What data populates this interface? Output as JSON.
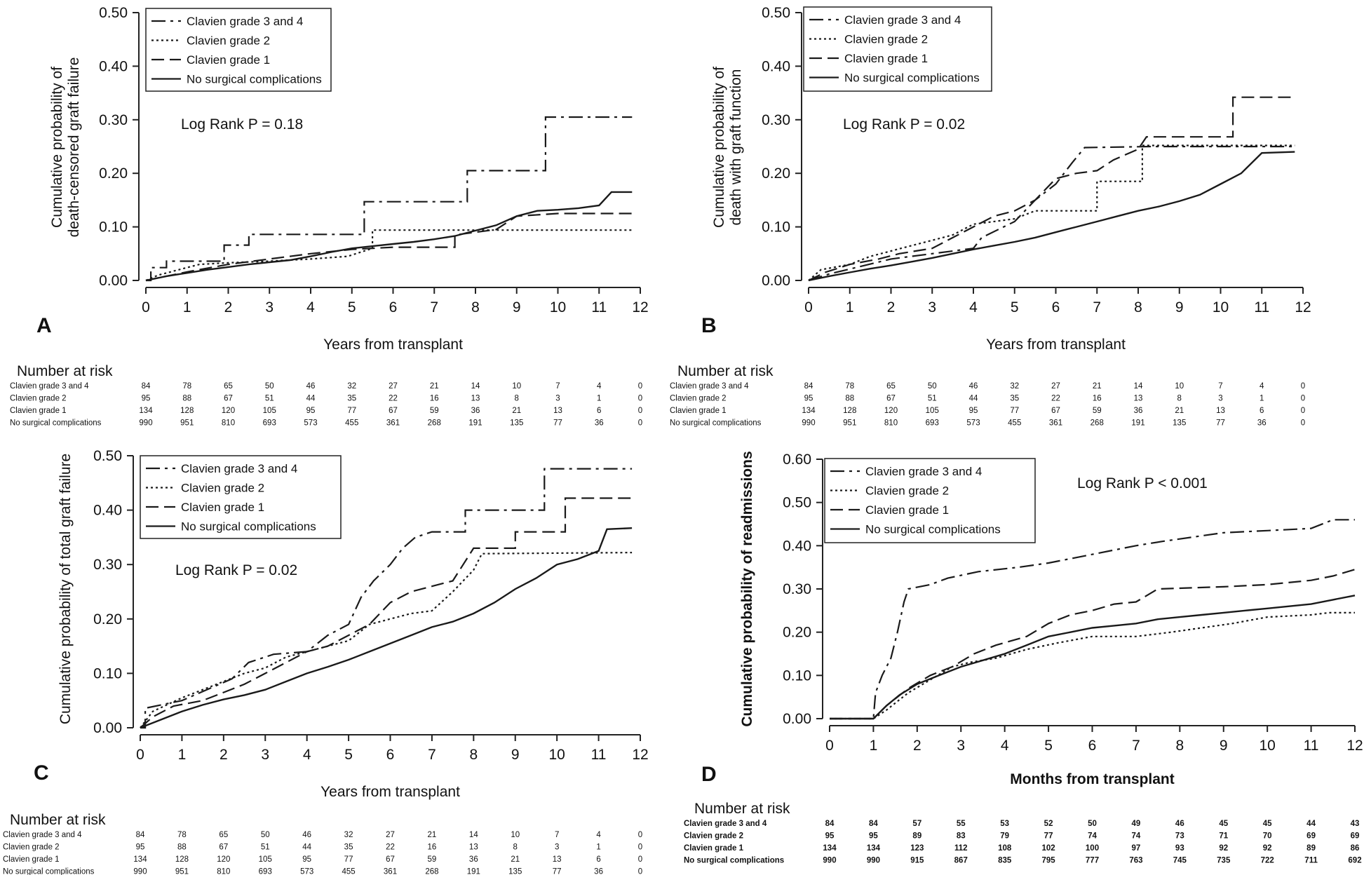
{
  "figure": {
    "risk_title": "Number at risk",
    "risk_rows": [
      "Clavien grade 3 and 4",
      "Clavien grade 2",
      "Clavien grade 1",
      "No surgical complications"
    ],
    "risk_values_years": [
      [
        84,
        78,
        65,
        50,
        46,
        32,
        27,
        21,
        14,
        10,
        7,
        4,
        0
      ],
      [
        95,
        88,
        67,
        51,
        44,
        35,
        22,
        16,
        13,
        8,
        3,
        1,
        0
      ],
      [
        134,
        128,
        120,
        105,
        95,
        77,
        67,
        59,
        36,
        21,
        13,
        6,
        0
      ],
      [
        990,
        951,
        810,
        693,
        573,
        455,
        361,
        268,
        191,
        135,
        77,
        36,
        0
      ]
    ],
    "risk_values_months": [
      [
        84,
        84,
        57,
        55,
        53,
        52,
        50,
        49,
        46,
        45,
        45,
        44,
        43
      ],
      [
        95,
        95,
        89,
        83,
        79,
        77,
        74,
        74,
        73,
        71,
        70,
        69,
        69
      ],
      [
        134,
        134,
        123,
        112,
        108,
        102,
        100,
        97,
        93,
        92,
        92,
        89,
        86
      ],
      [
        990,
        990,
        915,
        867,
        835,
        795,
        777,
        763,
        745,
        735,
        722,
        711,
        692
      ]
    ]
  },
  "chart_data": [
    {
      "type": "line",
      "panel": "A",
      "title": "",
      "ylabel": "Cumulative probability of\ndeath-censored graft failure",
      "xlabel": "Years from transplant",
      "xlim": [
        0,
        12
      ],
      "ylim": [
        0,
        0.5
      ],
      "x_ticks": [
        "0",
        "1",
        "2",
        "3",
        "4",
        "5",
        "6",
        "7",
        "8",
        "9",
        "10",
        "11",
        "12"
      ],
      "y_ticks": [
        "0.00",
        "0.10",
        "0.20",
        "0.30",
        "0.40",
        "0.50"
      ],
      "annotation": "Log Rank P = 0.18",
      "legend": [
        "Clavien grade 3 and 4",
        "Clavien grade 2",
        "Clavien grade 1",
        "No surgical complications"
      ],
      "series": [
        {
          "name": "Clavien grade 3 and 4",
          "style": "dashdot",
          "x": [
            0,
            0.12,
            0.12,
            0.5,
            0.5,
            1.9,
            1.9,
            2.5,
            2.5,
            3.2,
            3.2,
            5.3,
            5.3,
            7.8,
            7.8,
            9.7,
            9.7,
            11.8
          ],
          "y": [
            0,
            0,
            0.024,
            0.024,
            0.036,
            0.036,
            0.066,
            0.066,
            0.086,
            0.086,
            0.086,
            0.086,
            0.147,
            0.147,
            0.205,
            0.205,
            0.305,
            0.305
          ]
        },
        {
          "name": "Clavien grade 2",
          "style": "dotted",
          "x": [
            0,
            0.3,
            0.8,
            1.3,
            2.0,
            3.0,
            4.0,
            4.9,
            5.5,
            5.5,
            8.0,
            9.0,
            11.8
          ],
          "y": [
            0,
            0.01,
            0.02,
            0.03,
            0.033,
            0.036,
            0.04,
            0.045,
            0.06,
            0.094,
            0.094,
            0.094,
            0.094
          ]
        },
        {
          "name": "Clavien grade 1",
          "style": "dashed",
          "x": [
            0,
            0.5,
            1.0,
            2.0,
            3.0,
            4.0,
            5.0,
            6.0,
            7.5,
            7.5,
            8.5,
            9.0,
            10.0,
            11.8
          ],
          "y": [
            0,
            0.008,
            0.016,
            0.03,
            0.04,
            0.05,
            0.058,
            0.062,
            0.062,
            0.085,
            0.095,
            0.12,
            0.125,
            0.125
          ]
        },
        {
          "name": "No surgical complications",
          "style": "solid",
          "x": [
            0,
            0.5,
            1,
            1.5,
            2,
            2.5,
            3,
            3.5,
            4,
            4.5,
            5,
            5.5,
            6,
            6.5,
            7,
            7.5,
            8,
            8.5,
            9,
            9.5,
            10,
            10.5,
            11,
            11.3,
            11.8
          ],
          "y": [
            0,
            0.008,
            0.014,
            0.02,
            0.025,
            0.03,
            0.034,
            0.038,
            0.045,
            0.053,
            0.06,
            0.064,
            0.068,
            0.072,
            0.077,
            0.083,
            0.093,
            0.103,
            0.12,
            0.13,
            0.132,
            0.135,
            0.14,
            0.165,
            0.165
          ]
        }
      ]
    },
    {
      "type": "line",
      "panel": "B",
      "title": "",
      "ylabel": "Cumulative probability of\ndeath with graft function",
      "xlabel": "Years from transplant",
      "xlim": [
        0,
        12
      ],
      "ylim": [
        0,
        0.5
      ],
      "x_ticks": [
        "0",
        "1",
        "2",
        "3",
        "4",
        "5",
        "6",
        "7",
        "8",
        "9",
        "10",
        "11",
        "12"
      ],
      "y_ticks": [
        "0.00",
        "0.10",
        "0.20",
        "0.30",
        "0.40",
        "0.50"
      ],
      "annotation": "Log Rank P = 0.02",
      "legend": [
        "Clavien grade 3 and 4",
        "Clavien grade 2",
        "Clavien grade 1",
        "No surgical complications"
      ],
      "series": [
        {
          "name": "Clavien grade 3 and 4",
          "style": "dashdot",
          "x": [
            0,
            0.5,
            1.2,
            2,
            3,
            4,
            4.2,
            5,
            5.5,
            6,
            6.1,
            6.4,
            6.7,
            8.3,
            11.8
          ],
          "y": [
            0,
            0.012,
            0.025,
            0.04,
            0.05,
            0.06,
            0.08,
            0.11,
            0.15,
            0.18,
            0.19,
            0.22,
            0.248,
            0.25,
            0.25
          ]
        },
        {
          "name": "Clavien grade 2",
          "style": "dotted",
          "x": [
            0,
            0.3,
            1,
            1.5,
            2,
            2.5,
            3,
            3.5,
            4,
            5,
            5.5,
            6,
            7.0,
            7.0,
            8.1,
            8.1,
            11.8
          ],
          "y": [
            0,
            0.02,
            0.03,
            0.045,
            0.055,
            0.065,
            0.075,
            0.085,
            0.105,
            0.115,
            0.13,
            0.13,
            0.13,
            0.185,
            0.185,
            0.252,
            0.252
          ]
        },
        {
          "name": "Clavien grade 1",
          "style": "dashed",
          "x": [
            0,
            0.4,
            1,
            1.7,
            2.2,
            3,
            3.5,
            4,
            4.5,
            5,
            5.5,
            6,
            6.5,
            7,
            7.4,
            8,
            8.2,
            10.3,
            10.3,
            11.8
          ],
          "y": [
            0,
            0.015,
            0.03,
            0.04,
            0.05,
            0.06,
            0.08,
            0.1,
            0.12,
            0.13,
            0.15,
            0.19,
            0.2,
            0.205,
            0.225,
            0.245,
            0.268,
            0.268,
            0.342,
            0.342
          ]
        },
        {
          "name": "No surgical complications",
          "style": "solid",
          "x": [
            0,
            0.5,
            1,
            1.5,
            2,
            2.5,
            3,
            3.5,
            4,
            4.5,
            5,
            5.5,
            6,
            6.5,
            7,
            7.5,
            8,
            8.5,
            9,
            9.5,
            10,
            10.5,
            11,
            11.8
          ],
          "y": [
            0,
            0.008,
            0.015,
            0.022,
            0.028,
            0.035,
            0.042,
            0.05,
            0.058,
            0.065,
            0.072,
            0.08,
            0.09,
            0.1,
            0.11,
            0.12,
            0.13,
            0.138,
            0.148,
            0.16,
            0.18,
            0.2,
            0.238,
            0.24
          ]
        }
      ]
    },
    {
      "type": "line",
      "panel": "C",
      "title": "",
      "ylabel": "Cumulative probability of total graft failure",
      "xlabel": "Years from transplant",
      "xlim": [
        0,
        12
      ],
      "ylim": [
        0,
        0.5
      ],
      "x_ticks": [
        "0",
        "1",
        "2",
        "3",
        "4",
        "5",
        "6",
        "7",
        "8",
        "9",
        "10",
        "11",
        "12"
      ],
      "y_ticks": [
        "0.00",
        "0.10",
        "0.20",
        "0.30",
        "0.40",
        "0.50"
      ],
      "annotation": "Log Rank P = 0.02",
      "legend": [
        "Clavien grade 3 and 4",
        "Clavien grade 2",
        "Clavien grade 1",
        "No surgical complications"
      ],
      "series": [
        {
          "name": "Clavien grade 3 and 4",
          "style": "dashdot",
          "x": [
            0,
            0.12,
            0.12,
            1.0,
            2.2,
            2.6,
            3.2,
            4.0,
            4.5,
            5.0,
            5.3,
            5.6,
            6.0,
            6.3,
            6.6,
            7.0,
            7.8,
            7.8,
            9.7,
            9.7,
            11.8
          ],
          "y": [
            0,
            0,
            0.036,
            0.05,
            0.09,
            0.12,
            0.135,
            0.14,
            0.17,
            0.19,
            0.24,
            0.27,
            0.3,
            0.33,
            0.35,
            0.36,
            0.36,
            0.4,
            0.4,
            0.476,
            0.476
          ]
        },
        {
          "name": "Clavien grade 2",
          "style": "dotted",
          "x": [
            0,
            0.3,
            1,
            1.5,
            2,
            2.5,
            3,
            3.5,
            4,
            4.5,
            5,
            5.5,
            6,
            6.5,
            7,
            7.5,
            8,
            8.2,
            11.8
          ],
          "y": [
            0,
            0.03,
            0.055,
            0.07,
            0.085,
            0.1,
            0.11,
            0.13,
            0.14,
            0.15,
            0.16,
            0.19,
            0.2,
            0.21,
            0.215,
            0.25,
            0.29,
            0.32,
            0.322
          ]
        },
        {
          "name": "Clavien grade 1",
          "style": "dashed",
          "x": [
            0,
            0.3,
            0.8,
            1.5,
            2,
            2.5,
            3,
            3.5,
            4,
            4.5,
            5,
            5.5,
            6,
            6.5,
            7,
            7.5,
            8,
            9,
            9,
            10.2,
            10.2,
            11.8
          ],
          "y": [
            0,
            0.02,
            0.04,
            0.05,
            0.065,
            0.08,
            0.1,
            0.12,
            0.14,
            0.15,
            0.17,
            0.19,
            0.23,
            0.25,
            0.26,
            0.27,
            0.33,
            0.33,
            0.36,
            0.36,
            0.422,
            0.422
          ]
        },
        {
          "name": "No surgical complications",
          "style": "solid",
          "x": [
            0,
            0.5,
            1,
            1.5,
            2,
            2.5,
            3,
            3.5,
            4,
            4.5,
            5,
            5.5,
            6,
            6.5,
            7,
            7.5,
            8,
            8.5,
            9,
            9.5,
            10,
            10.5,
            11,
            11.2,
            11.8
          ],
          "y": [
            0,
            0.015,
            0.03,
            0.042,
            0.052,
            0.06,
            0.07,
            0.085,
            0.1,
            0.112,
            0.125,
            0.14,
            0.155,
            0.17,
            0.185,
            0.195,
            0.21,
            0.23,
            0.255,
            0.275,
            0.3,
            0.31,
            0.325,
            0.365,
            0.367
          ]
        }
      ]
    },
    {
      "type": "line",
      "panel": "D",
      "title": "",
      "ylabel": "Cumulative probability of readmissions",
      "xlabel": "Months from transplant",
      "xlim": [
        0,
        12
      ],
      "ylim": [
        0,
        0.6
      ],
      "x_ticks": [
        "0",
        "1",
        "2",
        "3",
        "4",
        "5",
        "6",
        "7",
        "8",
        "9",
        "10",
        "11",
        "12"
      ],
      "y_ticks": [
        "0.00",
        "0.10",
        "0.20",
        "0.30",
        "0.40",
        "0.50",
        "0.60"
      ],
      "annotation": "Log Rank P < 0.001",
      "legend": [
        "Clavien grade 3 and 4",
        "Clavien grade 2",
        "Clavien grade 1",
        "No surgical complications"
      ],
      "series": [
        {
          "name": "Clavien grade 3 and 4",
          "style": "dashdot",
          "x": [
            0,
            1.0,
            1.05,
            1.2,
            1.4,
            1.55,
            1.7,
            1.8,
            2.3,
            2.7,
            3.4,
            4.3,
            5.0,
            6.0,
            7.0,
            7.6,
            8.3,
            9.0,
            10.0,
            11.0,
            11.5,
            12
          ],
          "y": [
            0,
            0,
            0.06,
            0.1,
            0.14,
            0.2,
            0.27,
            0.3,
            0.31,
            0.325,
            0.34,
            0.35,
            0.36,
            0.38,
            0.4,
            0.41,
            0.42,
            0.43,
            0.435,
            0.44,
            0.46,
            0.46
          ]
        },
        {
          "name": "Clavien grade 2",
          "style": "dotted",
          "x": [
            0,
            1.0,
            1.3,
            1.8,
            2.3,
            2.8,
            3.2,
            3.8,
            4.5,
            5.2,
            6.0,
            7.0,
            7.8,
            8.5,
            9.2,
            10.0,
            11.0,
            11.4,
            12
          ],
          "y": [
            0,
            0,
            0.02,
            0.06,
            0.09,
            0.12,
            0.13,
            0.14,
            0.16,
            0.175,
            0.19,
            0.19,
            0.2,
            0.21,
            0.22,
            0.235,
            0.24,
            0.245,
            0.245
          ]
        },
        {
          "name": "Clavien grade 1",
          "style": "dashed",
          "x": [
            0,
            1.0,
            1.3,
            1.8,
            2.3,
            2.8,
            3.3,
            3.8,
            4.5,
            5.0,
            5.5,
            6.0,
            6.5,
            7.0,
            7.5,
            9.0,
            10.0,
            11.0,
            11.5,
            12
          ],
          "y": [
            0,
            0,
            0.03,
            0.07,
            0.1,
            0.12,
            0.15,
            0.17,
            0.19,
            0.22,
            0.24,
            0.25,
            0.265,
            0.27,
            0.3,
            0.305,
            0.31,
            0.32,
            0.33,
            0.345
          ]
        },
        {
          "name": "No surgical complications",
          "style": "solid",
          "x": [
            0,
            1.0,
            1.3,
            1.6,
            2.0,
            2.5,
            3.0,
            3.5,
            4.0,
            4.5,
            5.0,
            5.5,
            6.0,
            6.5,
            7.0,
            7.5,
            8.0,
            8.5,
            9.0,
            9.5,
            10.0,
            10.5,
            11.0,
            11.5,
            12
          ],
          "y": [
            0,
            0,
            0.03,
            0.055,
            0.08,
            0.1,
            0.12,
            0.135,
            0.15,
            0.17,
            0.19,
            0.2,
            0.21,
            0.215,
            0.22,
            0.23,
            0.235,
            0.24,
            0.245,
            0.25,
            0.255,
            0.26,
            0.265,
            0.275,
            0.285
          ]
        }
      ]
    }
  ]
}
